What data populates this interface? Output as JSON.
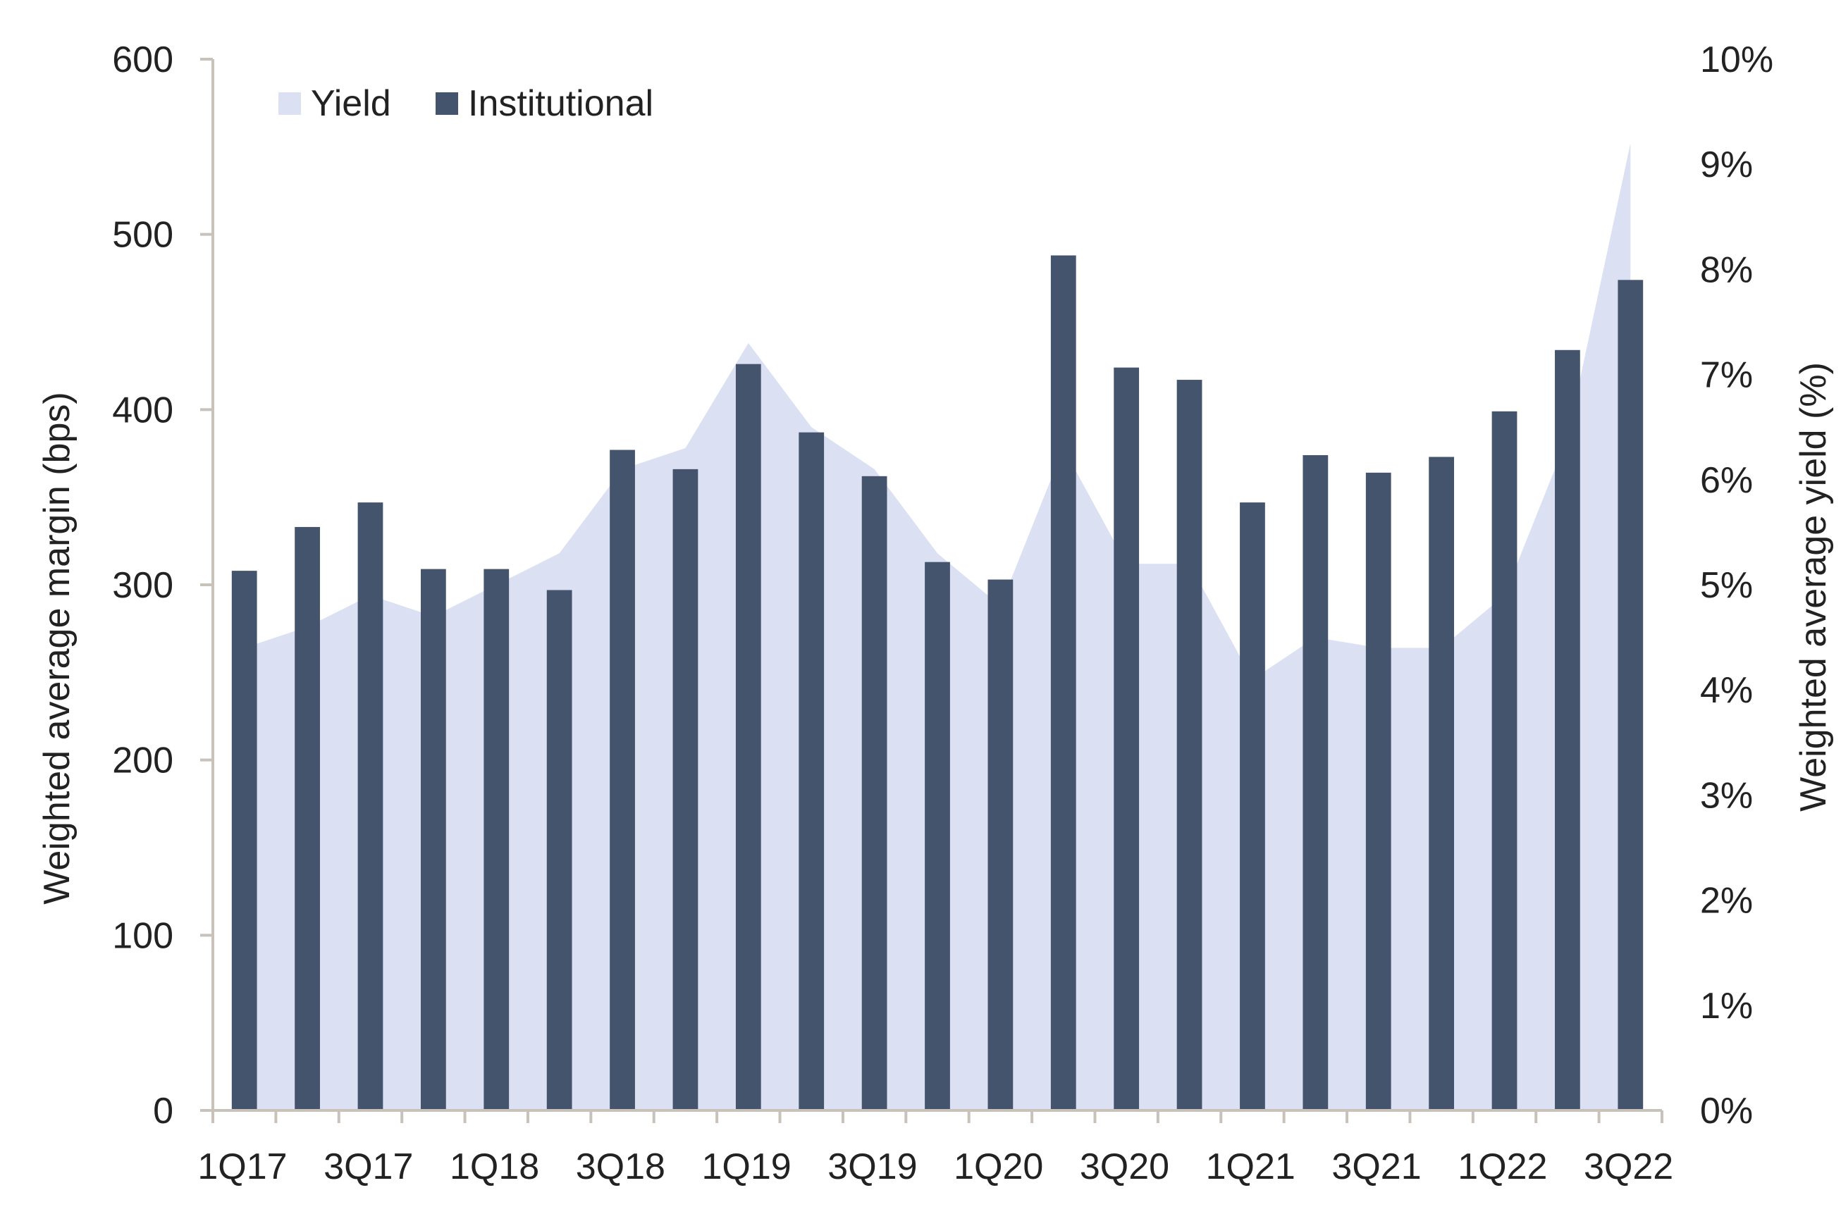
{
  "chart_data": {
    "type": "bar",
    "categories": [
      "1Q17",
      "2Q17",
      "3Q17",
      "4Q17",
      "1Q18",
      "2Q18",
      "3Q18",
      "4Q18",
      "1Q19",
      "2Q19",
      "3Q19",
      "4Q19",
      "1Q20",
      "2Q20",
      "3Q20",
      "4Q20",
      "1Q21",
      "2Q21",
      "3Q21",
      "4Q21",
      "1Q22",
      "2Q22",
      "3Q22"
    ],
    "x_tick_labels": [
      "1Q17",
      "3Q17",
      "1Q18",
      "3Q18",
      "1Q19",
      "3Q19",
      "1Q20",
      "3Q20",
      "1Q21",
      "3Q21",
      "1Q22",
      "3Q22"
    ],
    "series": [
      {
        "name": "Institutional",
        "type": "bar",
        "axis": "left",
        "color": "#43546c",
        "values": [
          308,
          333,
          347,
          309,
          309,
          297,
          377,
          366,
          426,
          387,
          362,
          313,
          303,
          488,
          424,
          417,
          347,
          374,
          364,
          373,
          399,
          434,
          474
        ]
      },
      {
        "name": "Yield",
        "type": "area",
        "axis": "right",
        "color": "#dbe0f2",
        "values": [
          4.4,
          4.6,
          4.9,
          4.7,
          5.0,
          5.3,
          6.1,
          6.3,
          7.3,
          6.5,
          6.1,
          5.3,
          4.8,
          6.3,
          5.2,
          5.2,
          4.1,
          4.5,
          4.4,
          4.4,
          4.9,
          6.4,
          9.2
        ]
      }
    ],
    "ylabel": "Weighted average margin (bps)",
    "ylim": [
      0,
      600
    ],
    "y_ticks": [
      "0",
      "100",
      "200",
      "300",
      "400",
      "500",
      "600"
    ],
    "y2label": "Weighted average yield (%)",
    "y2lim": [
      0,
      10
    ],
    "y2_ticks": [
      "0%",
      "1%",
      "2%",
      "3%",
      "4%",
      "5%",
      "6%",
      "7%",
      "8%",
      "9%",
      "10%"
    ],
    "legend": {
      "position": "top-left",
      "entries": [
        "Yield",
        "Institutional"
      ]
    },
    "grid": false,
    "axis_color": "#c8c2bb"
  }
}
